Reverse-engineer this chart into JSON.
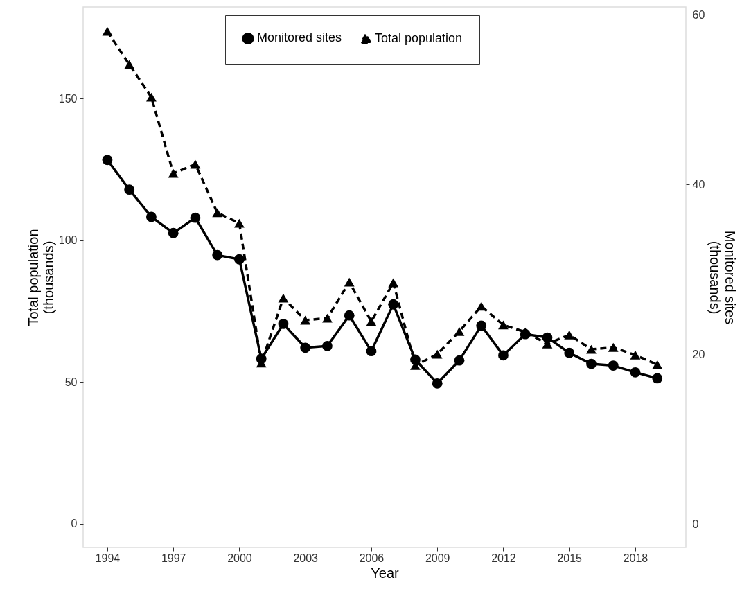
{
  "chart_data": {
    "type": "line",
    "xlabel": "Year",
    "ylabel": "Total population\n(thousands)",
    "y2label": "Monitored sites\n(thousands)",
    "x": [
      1994,
      1995,
      1996,
      1997,
      1998,
      1999,
      2000,
      2001,
      2002,
      2003,
      2004,
      2005,
      2006,
      2007,
      2008,
      2009,
      2010,
      2011,
      2012,
      2013,
      2014,
      2015,
      2016,
      2017,
      2018,
      2019
    ],
    "series": [
      {
        "name": "Monitored sites",
        "color": "#000000",
        "axis": "y2",
        "marker": "circle",
        "line_style": "solid",
        "values": [
          42.9,
          39.4,
          36.2,
          34.3,
          36.1,
          31.7,
          31.2,
          19.5,
          23.6,
          20.8,
          21.0,
          24.6,
          20.4,
          25.9,
          19.4,
          16.6,
          19.3,
          23.4,
          19.9,
          22.4,
          22.0,
          20.2,
          18.9,
          18.7,
          17.9,
          17.2
        ]
      },
      {
        "name": "Total population",
        "color": "#000000",
        "marker": "triangle",
        "line_style": "dashed",
        "values": [
          173.7,
          162,
          150.5,
          123.6,
          126.8,
          109.7,
          106,
          56.7,
          79.6,
          71.8,
          72.5,
          85.2,
          71.3,
          85,
          55.8,
          59.8,
          67.8,
          76.7,
          70.1,
          67.6,
          63.4,
          66.6,
          61.5,
          62.2,
          59.5,
          56.1
        ]
      }
    ],
    "xlim": [
      1992.9,
      2020.3
    ],
    "xticks": [
      1994,
      1997,
      2000,
      2003,
      2006,
      2009,
      2012,
      2015,
      2018
    ],
    "ylim": [
      -8.4,
      182.3
    ],
    "yticks": [
      0,
      50,
      100,
      150
    ],
    "y2lim": [
      -2.7,
      60.9
    ],
    "y2ticks": [
      0,
      20,
      40,
      60
    ],
    "grid": false,
    "legend": "top"
  }
}
